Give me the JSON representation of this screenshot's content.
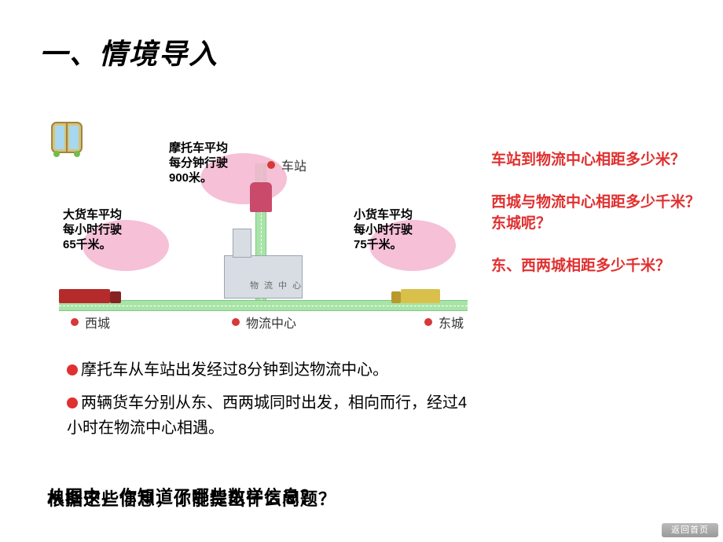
{
  "title": "一、情境导入",
  "vehicles": {
    "motorcycle": {
      "label": "摩托车平均\n每分钟行驶\n900米。",
      "speed_value": 900,
      "speed_unit": "米/分钟"
    },
    "big_truck": {
      "label": "大货车平均\n每小时行驶\n65千米。",
      "speed_value": 65,
      "speed_unit": "千米/小时"
    },
    "small_truck": {
      "label": "小货车平均\n每小时行驶\n75千米。",
      "speed_value": 75,
      "speed_unit": "千米/小时"
    }
  },
  "places": {
    "station": "车站",
    "west_city": "西城",
    "logistics_center": "物流中心",
    "east_city": "东城",
    "building_label": "物 流 中 心"
  },
  "facts": {
    "f1": "摩托车从车站出发经过8分钟到达物流中心。",
    "f2": "两辆货车分别从东、西两城同时出发，相向而行，经过4小时在物流中心相遇。"
  },
  "questions": {
    "q1": "车站到物流中心相距多少米？",
    "q2": "西城与物流中心相距多少千米？东城呢？",
    "q3": "东、西两城相距多少千米？"
  },
  "overlap": {
    "line1": "从图中，你知道了哪些数学信息？",
    "line2": "根据这些信息，你能提出什么问题？"
  },
  "return_button": "返回首页",
  "colors": {
    "question_red": "#e03030",
    "road_green": "#a8e4a8",
    "bubble_pink": "#f5b5d0",
    "dot_red": "#d73838"
  }
}
